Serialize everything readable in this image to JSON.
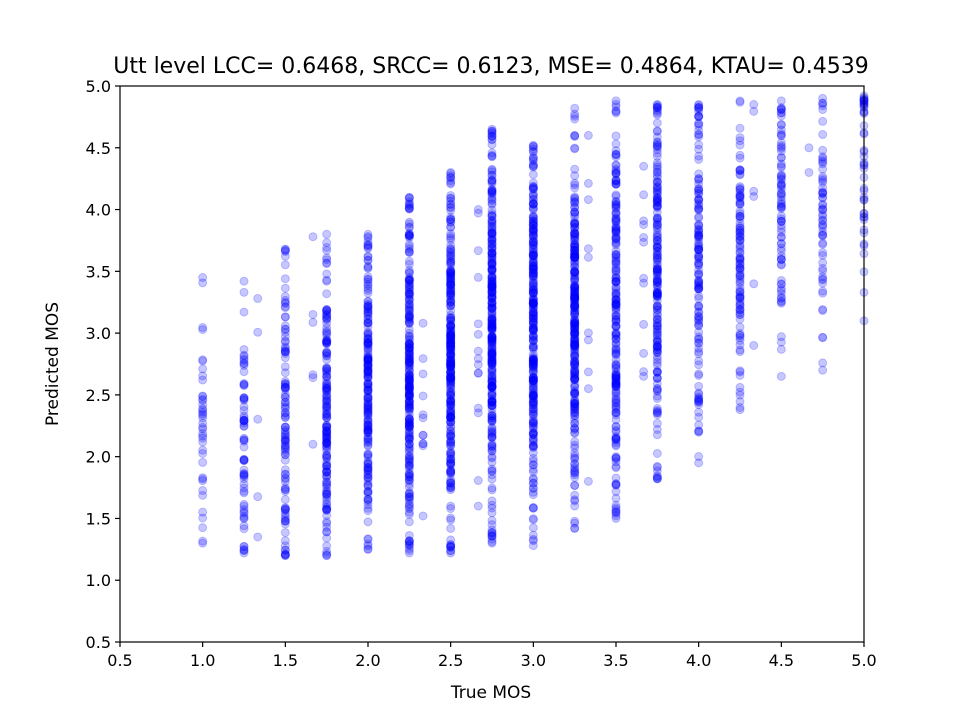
{
  "chart_data": {
    "type": "scatter",
    "title": "Utt level LCC= 0.6468, SRCC= 0.6123, MSE= 0.4864, KTAU= 0.4539",
    "xlabel": "True MOS",
    "ylabel": "Predicted MOS",
    "xlim": [
      0.5,
      5.0
    ],
    "ylim": [
      0.5,
      5.0
    ],
    "xticks": [
      "0.5",
      "1.0",
      "1.5",
      "2.0",
      "2.5",
      "3.0",
      "3.5",
      "4.0",
      "4.5",
      "5.0"
    ],
    "yticks": [
      "0.5",
      "1.0",
      "1.5",
      "2.0",
      "2.5",
      "3.0",
      "3.5",
      "4.0",
      "4.5",
      "5.0"
    ],
    "marker_color": "#0000ff",
    "marker_alpha": 0.22,
    "grid": false,
    "columns": [
      {
        "x": 1.0,
        "ymin": 1.3,
        "ymax": 3.45,
        "center": 2.2,
        "count": 40
      },
      {
        "x": 1.25,
        "ymin": 1.22,
        "ymax": 3.42,
        "center": 2.1,
        "count": 70
      },
      {
        "x": 1.333,
        "ymin": 1.35,
        "ymax": 3.28,
        "center": 2.2,
        "count": 5
      },
      {
        "x": 1.5,
        "ymin": 1.2,
        "ymax": 3.68,
        "center": 2.3,
        "count": 110
      },
      {
        "x": 1.667,
        "ymin": 2.1,
        "ymax": 3.78,
        "center": 2.9,
        "count": 6
      },
      {
        "x": 1.75,
        "ymin": 1.2,
        "ymax": 3.8,
        "center": 2.45,
        "count": 170
      },
      {
        "x": 2.0,
        "ymin": 1.25,
        "ymax": 3.8,
        "center": 2.5,
        "count": 200
      },
      {
        "x": 2.25,
        "ymin": 1.22,
        "ymax": 4.1,
        "center": 2.65,
        "count": 260
      },
      {
        "x": 2.333,
        "ymin": 1.52,
        "ymax": 3.08,
        "center": 2.3,
        "count": 12
      },
      {
        "x": 2.5,
        "ymin": 1.22,
        "ymax": 4.3,
        "center": 2.85,
        "count": 300
      },
      {
        "x": 2.667,
        "ymin": 1.6,
        "ymax": 4.0,
        "center": 2.8,
        "count": 15
      },
      {
        "x": 2.75,
        "ymin": 1.3,
        "ymax": 4.65,
        "center": 2.95,
        "count": 320
      },
      {
        "x": 3.0,
        "ymin": 1.28,
        "ymax": 4.52,
        "center": 3.05,
        "count": 300
      },
      {
        "x": 3.25,
        "ymin": 1.42,
        "ymax": 4.82,
        "center": 3.15,
        "count": 280
      },
      {
        "x": 3.333,
        "ymin": 1.8,
        "ymax": 4.6,
        "center": 3.0,
        "count": 10
      },
      {
        "x": 3.5,
        "ymin": 1.5,
        "ymax": 4.88,
        "center": 3.2,
        "count": 220
      },
      {
        "x": 3.667,
        "ymin": 2.65,
        "ymax": 4.35,
        "center": 3.5,
        "count": 12
      },
      {
        "x": 3.75,
        "ymin": 1.82,
        "ymax": 4.85,
        "center": 3.35,
        "count": 200
      },
      {
        "x": 4.0,
        "ymin": 1.95,
        "ymax": 4.85,
        "center": 3.7,
        "count": 140
      },
      {
        "x": 4.25,
        "ymin": 2.38,
        "ymax": 4.88,
        "center": 3.65,
        "count": 110
      },
      {
        "x": 4.333,
        "ymin": 2.9,
        "ymax": 4.85,
        "center": 3.9,
        "count": 6
      },
      {
        "x": 4.5,
        "ymin": 2.65,
        "ymax": 4.88,
        "center": 3.85,
        "count": 80
      },
      {
        "x": 4.667,
        "ymin": 4.3,
        "ymax": 4.5,
        "center": 4.45,
        "count": 2
      },
      {
        "x": 4.75,
        "ymin": 2.7,
        "ymax": 4.9,
        "center": 4.05,
        "count": 60
      },
      {
        "x": 5.0,
        "ymin": 3.1,
        "ymax": 4.92,
        "center": 4.3,
        "count": 45
      }
    ]
  }
}
